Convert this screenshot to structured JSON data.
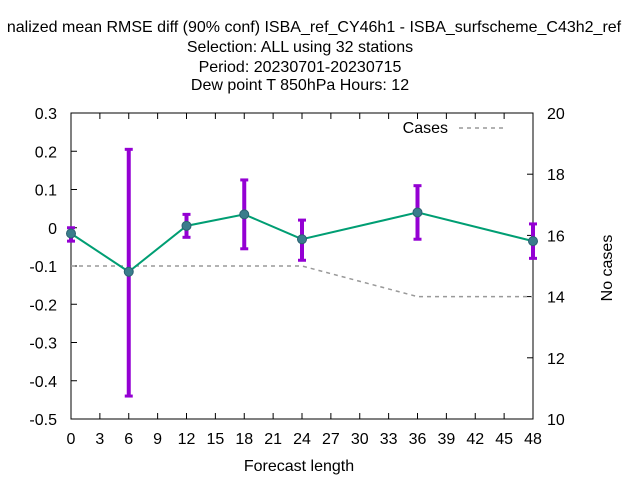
{
  "chart_data": {
    "type": "line",
    "title_lines": [
      "nalized mean RMSE diff (90% conf) ISBA_ref_CY46h1 - ISBA_surfscheme_C43h2_ref",
      "Selection: ALL using    32 stations",
      "Period: 20230701-20230715",
      "Dew point T 850hPa   Hours:  12"
    ],
    "xlabel": "Forecast length",
    "ylabel": "",
    "y2label": "No cases",
    "xlim": [
      0,
      48
    ],
    "ylim": [
      -0.5,
      0.3
    ],
    "y2lim": [
      10,
      20
    ],
    "x_ticks": [
      0,
      3,
      6,
      9,
      12,
      15,
      18,
      21,
      24,
      27,
      30,
      33,
      36,
      39,
      42,
      45,
      48
    ],
    "y_ticks": [
      "0.3",
      "0.2",
      "0.1",
      "0",
      "-0.1",
      "-0.2",
      "-0.3",
      "-0.4",
      "-0.5"
    ],
    "y2_ticks": [
      "20",
      "18",
      "16",
      "14",
      "12",
      "10"
    ],
    "grid": false,
    "legend_position": "top-right",
    "series": [
      {
        "name": "",
        "color": "#009e73",
        "errorbar_color": "#9400d3",
        "x": [
          0,
          6,
          12,
          18,
          24,
          36,
          48
        ],
        "y": [
          -0.015,
          -0.115,
          0.005,
          0.035,
          -0.03,
          0.04,
          -0.035
        ],
        "y_low": [
          -0.035,
          -0.44,
          -0.025,
          -0.055,
          -0.085,
          -0.03,
          -0.08
        ],
        "y_high": [
          0.0,
          0.205,
          0.035,
          0.125,
          0.02,
          0.11,
          0.01
        ]
      },
      {
        "name": "Cases",
        "axis": "y2",
        "style": "dashed",
        "color": "#999999",
        "x": [
          0,
          6,
          12,
          18,
          24,
          36,
          48
        ],
        "y": [
          15,
          15,
          15,
          15,
          15,
          14,
          14
        ]
      }
    ]
  }
}
